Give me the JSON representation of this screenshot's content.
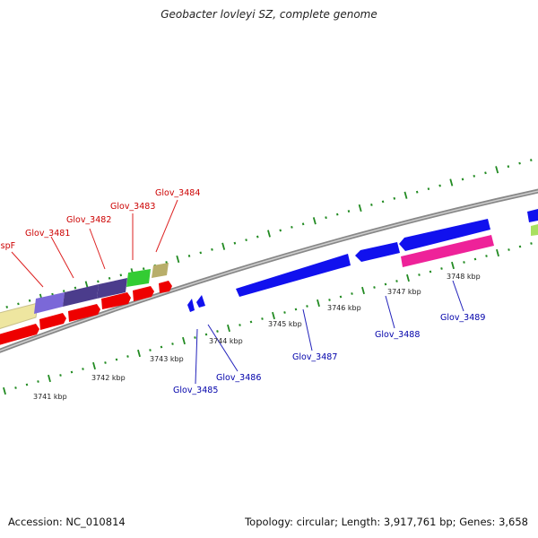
{
  "title": "Geobacter lovleyi SZ, complete genome",
  "footer": {
    "accession": "Accession: NC_010814",
    "summary": "Topology: circular; Length: 3,917,761 bp; Genes: 3,658"
  },
  "scale_labels": [
    "3741 kbp",
    "3742 kbp",
    "3743 kbp",
    "3744 kbp",
    "3745 kbp",
    "3746 kbp",
    "3747 kbp",
    "3748 kbp"
  ],
  "gene_labels_top": [
    "ispF",
    "Glov_3481",
    "Glov_3482",
    "Glov_3483",
    "Glov_3484"
  ],
  "gene_labels_bottom": [
    "Glov_3485",
    "Glov_3486",
    "Glov_3487",
    "Glov_3488",
    "Glov_3489"
  ],
  "colors": {
    "forward_cds": "#ee0000",
    "reverse_cds": "#1111ee",
    "backbone": "#888888",
    "tick": "#228b22",
    "label_forward": "#cc0000",
    "label_reverse": "#0000aa",
    "highlight_pink": "#ee2299",
    "highlight_green": "#33cc33",
    "highlight_purple": "#4b3c8c",
    "highlight_lavender": "#7b68d8",
    "highlight_khaki": "#b8ae6a",
    "highlight_cream": "#eee6a0",
    "highlight_lime": "#a8e060"
  }
}
